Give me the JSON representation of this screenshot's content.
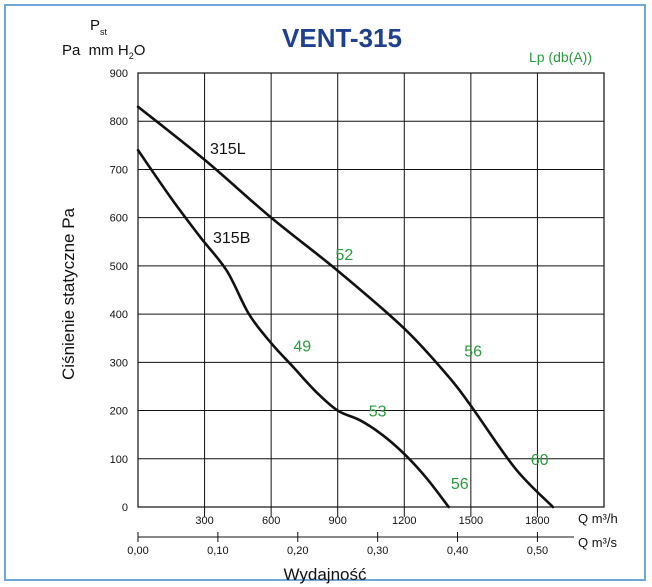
{
  "chart_data": {
    "type": "line",
    "title": "VENT-315",
    "title_color": "#1f3f8f",
    "label_color": "#2a9a3e",
    "y_unit_top": "P",
    "y_unit_top_sub": "st",
    "y_unit_bottom": "Pa  mm H",
    "y_unit_bottom_sub": "2",
    "y_unit_bottom_tail": "O",
    "ylabel": "Ciśnienie statyczne Pa",
    "xlabel": "Wydajność",
    "noise_label": "Lp (db(A))",
    "x_unit_h": "Q m³/h",
    "x_unit_s": "Q m³/s",
    "xlim": [
      0,
      2100
    ],
    "ylim": [
      0,
      900
    ],
    "y_ticks": [
      "0",
      "100",
      "200",
      "300",
      "400",
      "500",
      "600",
      "700",
      "800",
      "900"
    ],
    "x_ticks_h": [
      "300",
      "600",
      "900",
      "1200",
      "1500",
      "1800"
    ],
    "x_ticks_s": [
      "0,00",
      "0,10",
      "0,20",
      "0,30",
      "0,40",
      "0,50"
    ],
    "series": [
      {
        "name": "315L",
        "x": [
          0,
          300,
          600,
          900,
          1200,
          1400,
          1500,
          1700,
          1870
        ],
        "y": [
          830,
          720,
          600,
          490,
          370,
          270,
          210,
          80,
          0
        ]
      },
      {
        "name": "315B",
        "x": [
          0,
          150,
          280,
          400,
          500,
          600,
          700,
          800,
          900,
          1000,
          1100,
          1200,
          1300,
          1400
        ],
        "y": [
          740,
          640,
          560,
          490,
          400,
          340,
          290,
          240,
          200,
          180,
          150,
          110,
          60,
          0
        ]
      }
    ],
    "noise_labels": [
      {
        "text": "52",
        "x": 890,
        "y": 525
      },
      {
        "text": "49",
        "x": 700,
        "y": 335
      },
      {
        "text": "56",
        "x": 1470,
        "y": 325
      },
      {
        "text": "53",
        "x": 1040,
        "y": 200
      },
      {
        "text": "60",
        "x": 1770,
        "y": 100
      },
      {
        "text": "56",
        "x": 1410,
        "y": 50
      }
    ]
  }
}
